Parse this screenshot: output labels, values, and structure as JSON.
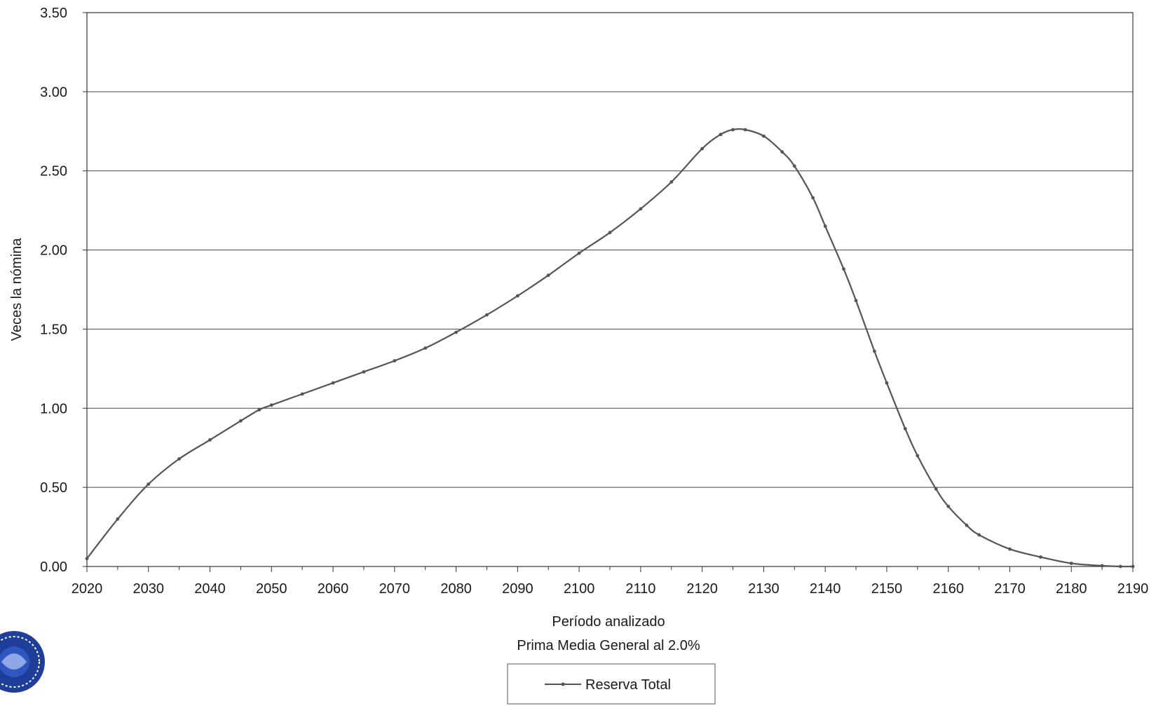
{
  "chart_data": {
    "type": "line",
    "title": "",
    "xlabel": "Período analizado",
    "subtitle": "Prima Media General al 2.0%",
    "ylabel": "Veces la nómina",
    "xlim": [
      2020,
      2190
    ],
    "ylim": [
      0,
      3.5
    ],
    "x_ticks": [
      "2020",
      "2030",
      "2040",
      "2050",
      "2060",
      "2070",
      "2080",
      "2090",
      "2100",
      "2110",
      "2120",
      "2130",
      "2140",
      "2150",
      "2160",
      "2170",
      "2180",
      "2190"
    ],
    "y_ticks": [
      "0.00",
      "0.50",
      "1.00",
      "1.50",
      "2.00",
      "2.50",
      "3.00",
      "3.50"
    ],
    "grid": true,
    "legend_position": "bottom-center",
    "series": [
      {
        "name": "Reserva Total",
        "color": "#555555",
        "x": [
          2020,
          2025,
          2030,
          2035,
          2040,
          2045,
          2048,
          2050,
          2055,
          2060,
          2065,
          2070,
          2075,
          2080,
          2085,
          2090,
          2095,
          2100,
          2105,
          2110,
          2115,
          2120,
          2123,
          2125,
          2127,
          2130,
          2133,
          2135,
          2138,
          2140,
          2143,
          2145,
          2148,
          2150,
          2153,
          2155,
          2158,
          2160,
          2163,
          2165,
          2170,
          2175,
          2180,
          2185,
          2188,
          2190
        ],
        "values": [
          0.05,
          0.3,
          0.52,
          0.68,
          0.8,
          0.92,
          0.99,
          1.02,
          1.09,
          1.16,
          1.23,
          1.3,
          1.38,
          1.48,
          1.59,
          1.71,
          1.84,
          1.98,
          2.11,
          2.26,
          2.43,
          2.64,
          2.73,
          2.76,
          2.76,
          2.72,
          2.62,
          2.53,
          2.33,
          2.15,
          1.88,
          1.68,
          1.36,
          1.16,
          0.87,
          0.7,
          0.49,
          0.38,
          0.26,
          0.2,
          0.11,
          0.06,
          0.02,
          0.005,
          0.0,
          0.0
        ]
      }
    ]
  },
  "legend": {
    "label": "Reserva Total"
  }
}
